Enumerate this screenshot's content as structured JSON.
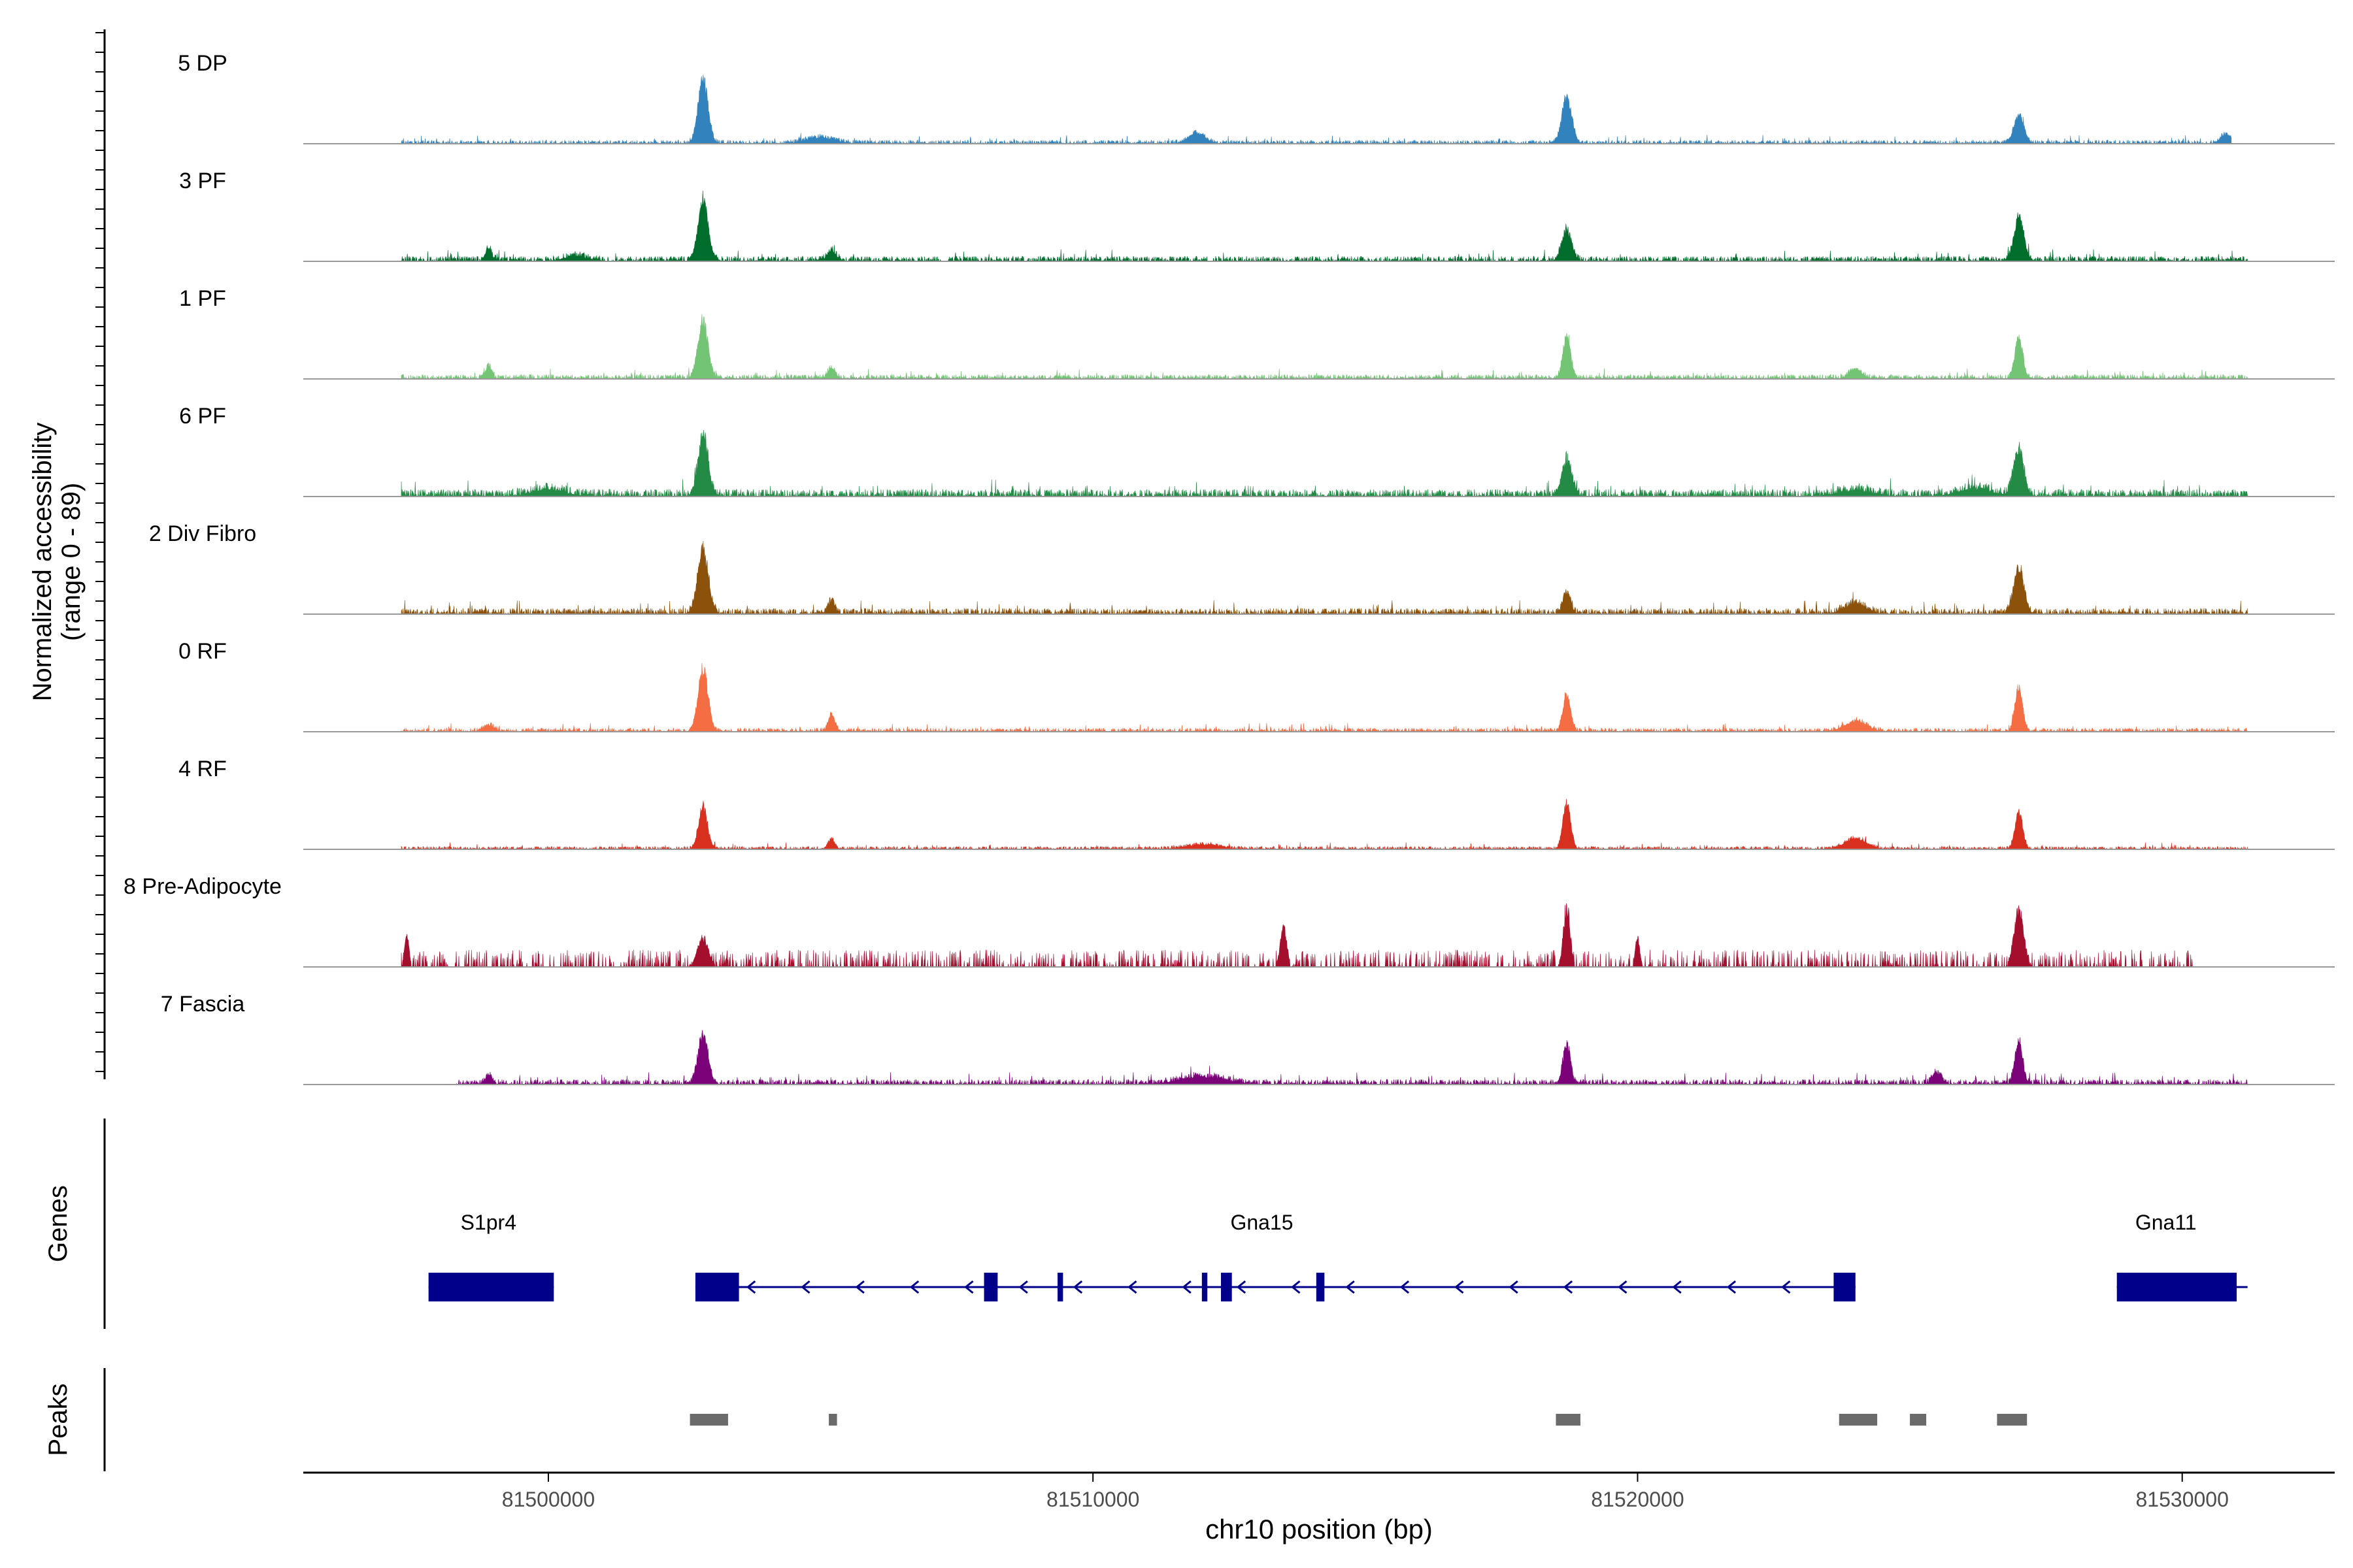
{
  "chart_data": {
    "type": "area",
    "title": "",
    "region": "chr10",
    "xlabel": "chr10 position (bp)",
    "ylabel_line1": "Normalized accessibility",
    "ylabel_line2": "(range 0 - 89)",
    "ylim": [
      0,
      89
    ],
    "xlim": [
      81495500,
      81532800
    ],
    "x_ticks": [
      81500000,
      81510000,
      81520000,
      81530000
    ],
    "x_tick_labels": [
      "81500000",
      "81510000",
      "81520000",
      "81530000"
    ],
    "track_range": [
      81497300,
      81531200
    ],
    "series": [
      {
        "name": "5 DP",
        "color": "#3182bd",
        "peaks": [
          [
            81502840,
            89,
            90
          ],
          [
            81518700,
            62,
            90
          ],
          [
            81527000,
            38,
            90
          ],
          [
            81511900,
            14,
            150
          ],
          [
            81505000,
            8,
            250
          ],
          [
            81530800,
            12,
            100
          ]
        ],
        "background": 2.5,
        "jagged": false,
        "region": [
          81497300,
          81530900
        ]
      },
      {
        "name": "3 PF",
        "color": "#006d2c",
        "peaks": [
          [
            81502840,
            82,
            90
          ],
          [
            81527000,
            59,
            90
          ],
          [
            81518700,
            41,
            90
          ],
          [
            81498900,
            17,
            60
          ],
          [
            81505200,
            14,
            80
          ],
          [
            81500500,
            7,
            200
          ]
        ],
        "background": 3.5,
        "jagged": false,
        "region": [
          81497300,
          81531200
        ]
      },
      {
        "name": "1 PF",
        "color": "#74c476",
        "peaks": [
          [
            81502840,
            78,
            90
          ],
          [
            81518700,
            58,
            70
          ],
          [
            81527000,
            58,
            70
          ],
          [
            81498900,
            16,
            60
          ],
          [
            81505200,
            14,
            70
          ],
          [
            81524000,
            13,
            120
          ]
        ],
        "background": 3,
        "jagged": false,
        "region": [
          81497300,
          81531200
        ]
      },
      {
        "name": "6 PF",
        "color": "#238b45",
        "peaks": [
          [
            81502840,
            84,
            90
          ],
          [
            81527000,
            65,
            90
          ],
          [
            81518700,
            47,
            90
          ],
          [
            81500000,
            9,
            300
          ],
          [
            81526200,
            10,
            300
          ],
          [
            81524000,
            8,
            300
          ]
        ],
        "background": 5,
        "jagged": false,
        "region": [
          81497300,
          81531200
        ]
      },
      {
        "name": "2 Div Fibro",
        "color": "#8c510a",
        "peaks": [
          [
            81502840,
            85,
            100
          ],
          [
            81527000,
            63,
            90
          ],
          [
            81518700,
            28,
            70
          ],
          [
            81505200,
            18,
            60
          ],
          [
            81524000,
            13,
            200
          ]
        ],
        "background": 4,
        "jagged": false,
        "region": [
          81497300,
          81531200
        ]
      },
      {
        "name": "0 RF",
        "color": "#f46d43",
        "peaks": [
          [
            81502840,
            86,
            90
          ],
          [
            81518700,
            48,
            70
          ],
          [
            81527000,
            58,
            70
          ],
          [
            81505200,
            22,
            60
          ],
          [
            81524000,
            14,
            200
          ],
          [
            81498900,
            8,
            100
          ]
        ],
        "background": 2.5,
        "jagged": false,
        "region": [
          81497300,
          81531200
        ]
      },
      {
        "name": "4 RF",
        "color": "#d7301f",
        "peaks": [
          [
            81502840,
            58,
            80
          ],
          [
            81518700,
            63,
            70
          ],
          [
            81527000,
            52,
            70
          ],
          [
            81505200,
            14,
            60
          ],
          [
            81524000,
            14,
            200
          ],
          [
            81512000,
            6,
            300
          ]
        ],
        "background": 2,
        "jagged": false,
        "region": [
          81497300,
          81531200
        ]
      },
      {
        "name": "8 Pre-Adipocyte",
        "color": "#a50f2e",
        "peaks": [
          [
            81518700,
            88,
            60
          ],
          [
            81527000,
            80,
            90
          ],
          [
            81513500,
            55,
            60
          ],
          [
            81502840,
            40,
            100
          ],
          [
            81497400,
            44,
            40
          ],
          [
            81520000,
            40,
            40
          ]
        ],
        "background": 0,
        "jagged": true,
        "region": [
          81497300,
          81530200
        ]
      },
      {
        "name": "7 Fascia",
        "color": "#7a0177",
        "peaks": [
          [
            81502840,
            68,
            90
          ],
          [
            81518700,
            52,
            70
          ],
          [
            81527000,
            60,
            70
          ],
          [
            81498900,
            12,
            60
          ],
          [
            81525500,
            15,
            80
          ],
          [
            81512000,
            10,
            400
          ]
        ],
        "background": 3.5,
        "jagged": false,
        "region": [
          81498300,
          81531200
        ]
      }
    ],
    "genes_axis_label": "Genes",
    "genes": [
      {
        "name": "S1pr4",
        "label_pos": 81498900,
        "exons": [
          [
            81497800,
            81500100
          ]
        ],
        "strand": "none",
        "span": [
          81497800,
          81500100
        ]
      },
      {
        "name": "Gna15",
        "label_pos": 81513100,
        "span": [
          81502700,
          81524000
        ],
        "strand": "-",
        "exons": [
          [
            81502700,
            81503500
          ],
          [
            81508000,
            81508250
          ],
          [
            81509350,
            81509450
          ],
          [
            81512000,
            81512100
          ],
          [
            81512350,
            81512550
          ],
          [
            81514100,
            81514250
          ],
          [
            81523600,
            81524000
          ]
        ]
      },
      {
        "name": "Gna11",
        "label_pos": 81529700,
        "span": [
          81528800,
          81531200
        ],
        "strand": "none",
        "exons": [
          [
            81528800,
            81531000
          ]
        ]
      }
    ],
    "peaks_axis_label": "Peaks",
    "peak_regions": [
      [
        81502600,
        81503300
      ],
      [
        81505150,
        81505300
      ],
      [
        81518500,
        81518950
      ],
      [
        81523700,
        81524400
      ],
      [
        81525000,
        81525300
      ],
      [
        81526600,
        81527150
      ]
    ]
  },
  "colors": {
    "gene": "#00008b",
    "peak": "#6b6b6b",
    "baseline": "#999999",
    "axis": "#000000"
  }
}
